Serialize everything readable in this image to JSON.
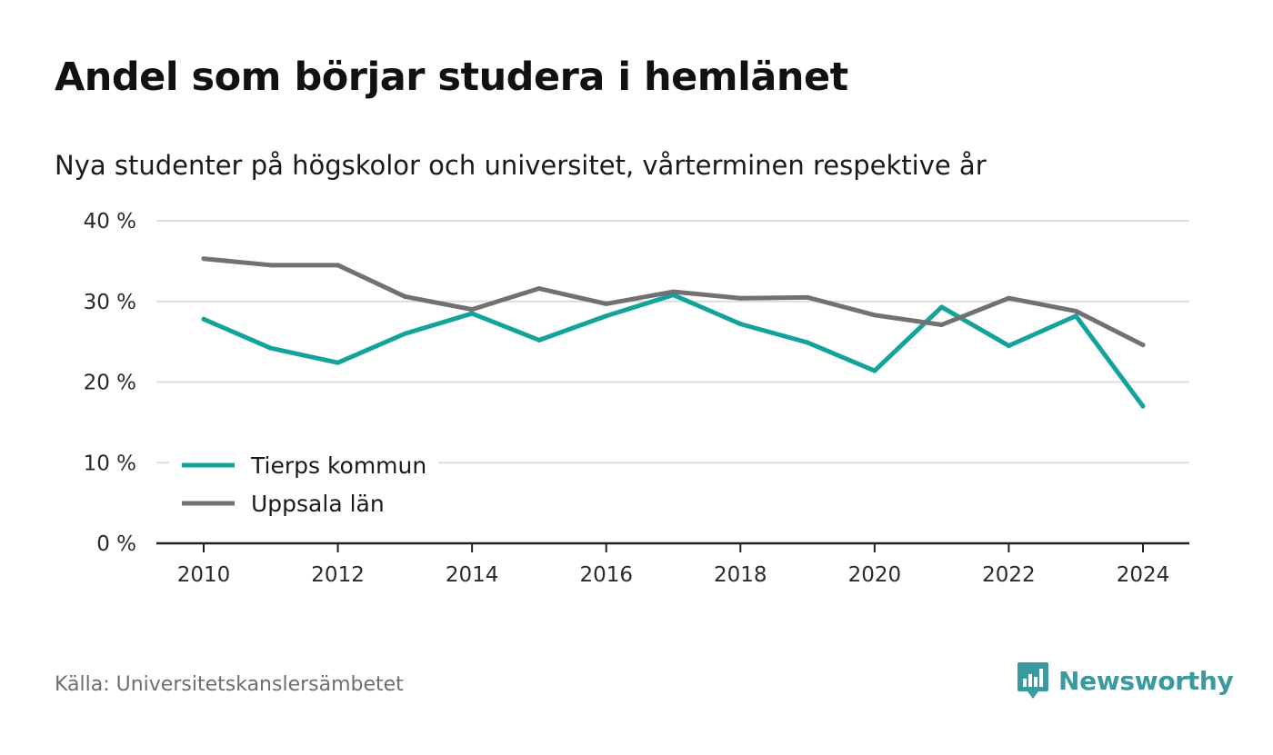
{
  "title": "Andel som börjar studera i hemlänet",
  "subtitle": "Nya studenter på högskolor och universitet, vårterminen respektive år",
  "source": "Källa: Universitetskanslersämbetet",
  "brand": {
    "name": "Newsworthy",
    "icon": "newsworthy-logo-icon",
    "color": "#3a9aa0"
  },
  "chart_data": {
    "type": "line",
    "x": [
      2010,
      2011,
      2012,
      2013,
      2014,
      2015,
      2016,
      2017,
      2018,
      2019,
      2020,
      2021,
      2022,
      2023,
      2024
    ],
    "xticks": [
      "2010",
      "2012",
      "2014",
      "2016",
      "2018",
      "2020",
      "2022",
      "2024"
    ],
    "yticks": [
      "0 %",
      "10 %",
      "20 %",
      "30 %",
      "40 %"
    ],
    "ylim": [
      0,
      40
    ],
    "grid": true,
    "legend_position": "bottom-left",
    "series": [
      {
        "name": "Tierps kommun",
        "color": "#14a39a",
        "values": [
          27.8,
          24.2,
          22.4,
          26.0,
          28.5,
          25.2,
          28.2,
          30.8,
          27.2,
          24.9,
          21.4,
          29.3,
          24.5,
          28.2,
          17.0
        ]
      },
      {
        "name": "Uppsala län",
        "color": "#717073",
        "values": [
          35.3,
          34.5,
          34.5,
          30.6,
          29.0,
          31.6,
          29.7,
          31.2,
          30.4,
          30.5,
          28.3,
          27.1,
          30.4,
          28.8,
          24.6
        ]
      }
    ]
  }
}
